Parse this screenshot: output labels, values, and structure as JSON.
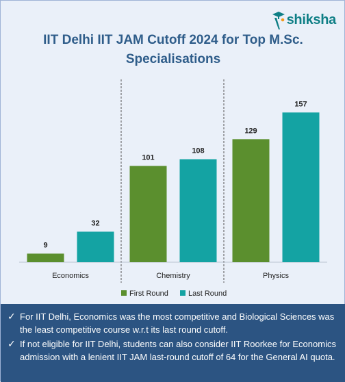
{
  "brand": {
    "name": "shiksha"
  },
  "colors": {
    "first_round": "#5b8f2e",
    "last_round": "#14a3a3",
    "notes_bg": "#2c5482",
    "title": "#2f5d8a"
  },
  "chart_data": {
    "type": "bar",
    "title": "IIT Delhi IIT JAM Cutoff 2024 for Top M.Sc. Specialisations",
    "categories": [
      "Economics",
      "Chemistry",
      "Physics"
    ],
    "series": [
      {
        "name": "First Round",
        "values": [
          9,
          101,
          129
        ]
      },
      {
        "name": "Last Round",
        "values": [
          32,
          108,
          157
        ]
      }
    ],
    "ylim": [
      0,
      168
    ],
    "grid": false,
    "legend": "bottom"
  },
  "notes": [
    "For IIT Delhi, Economics was the most competitive and Biological Sciences was the least competitive course w.r.t its last round cutoff.",
    "If not eligible for IIT Delhi, students can also consider IIT Roorkee for Economics admission with a lenient IIT JAM last-round cutoff of 64 for the General AI quota."
  ],
  "check_icon": "✓"
}
